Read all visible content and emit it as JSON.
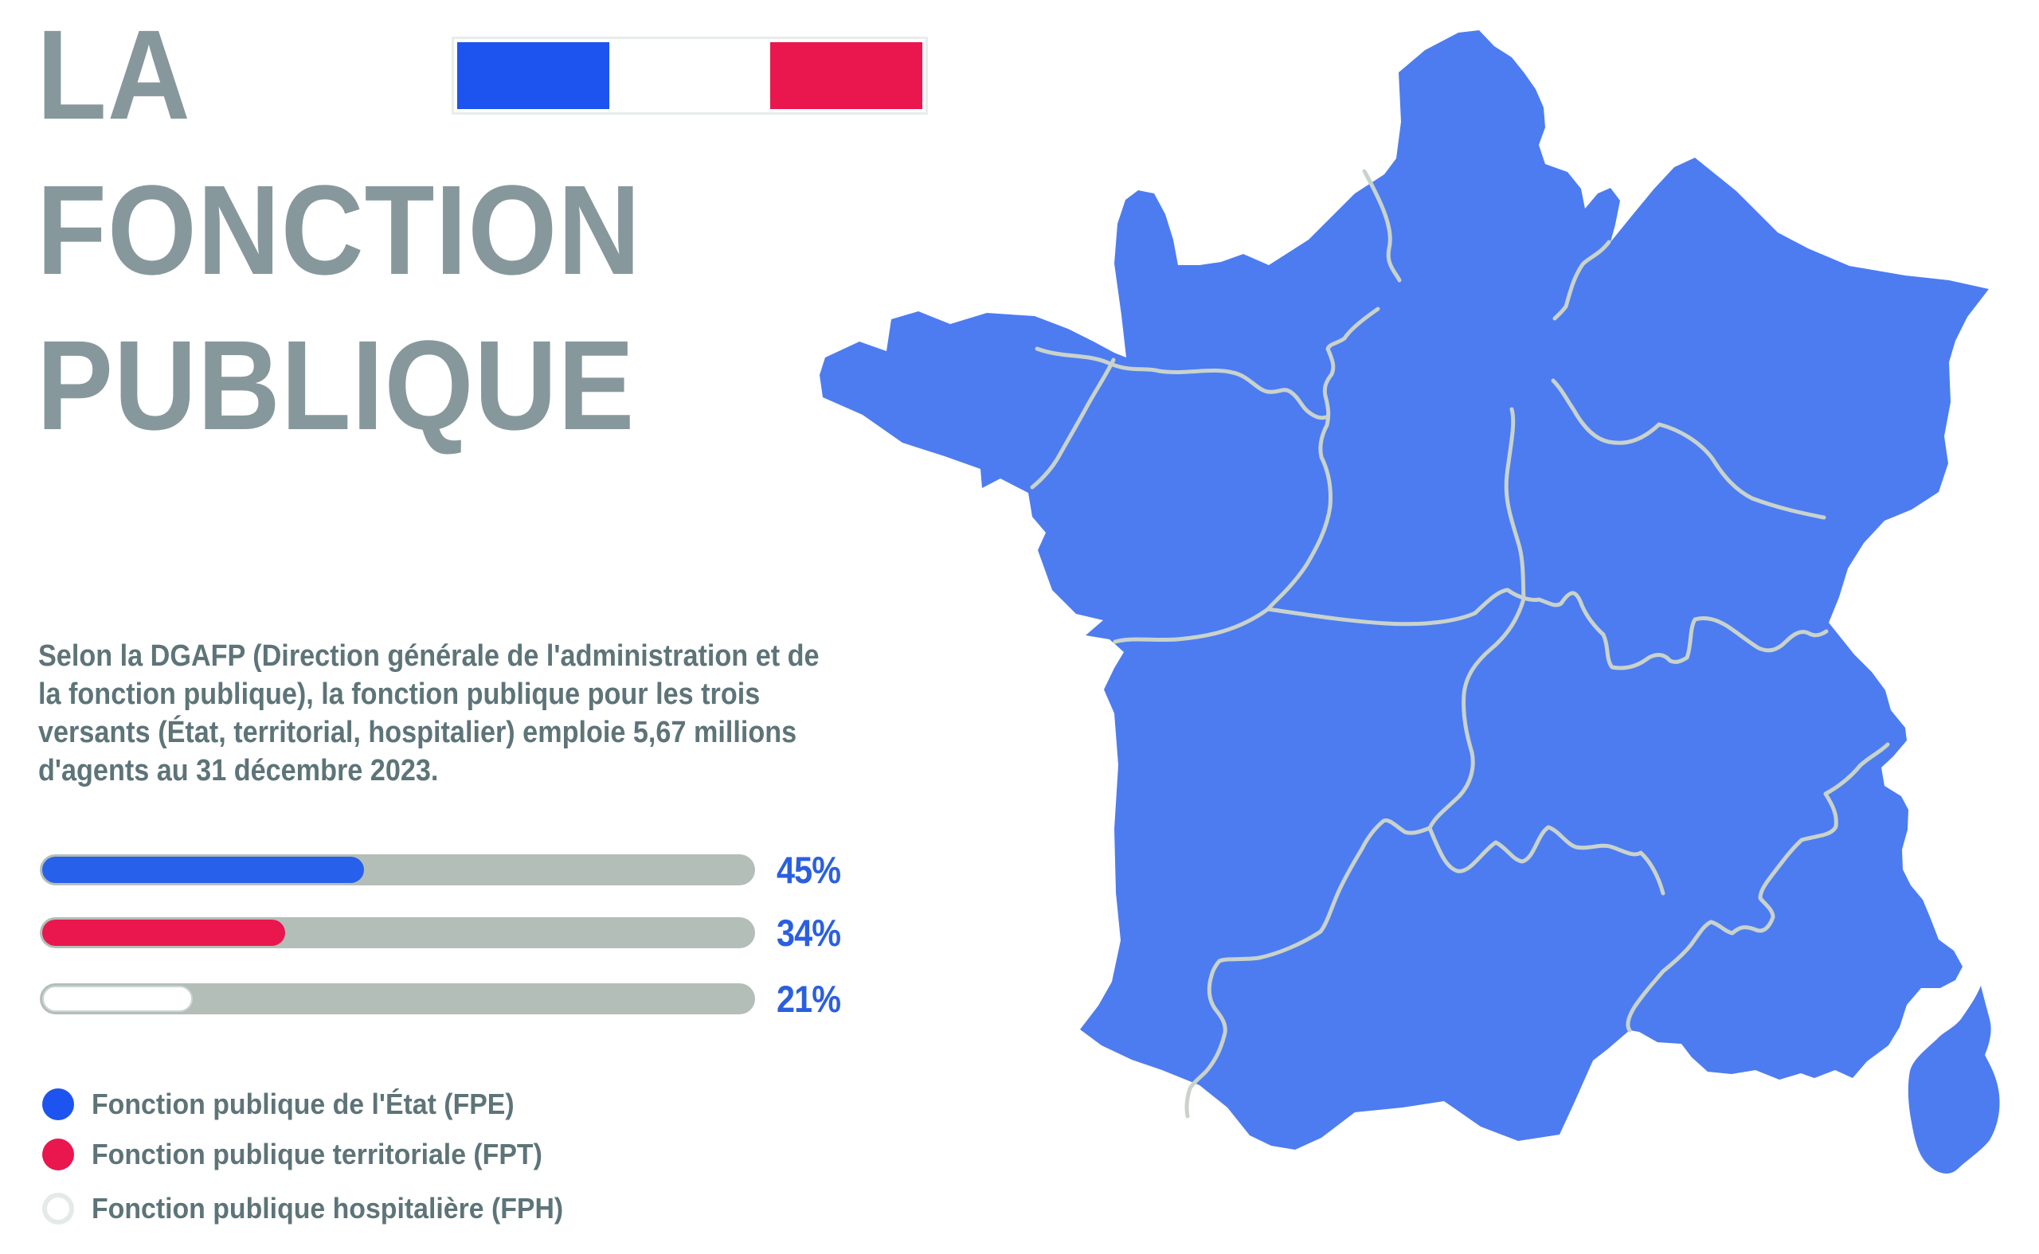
{
  "title": {
    "line1": "LA",
    "line2": "FONCTION",
    "line3": "PUBLIQUE",
    "color": "#87989d"
  },
  "flag": {
    "name": "drapeau français",
    "blue": "#1d54ef",
    "white": "#ffffff",
    "red": "#e9174e",
    "frame": "#e8edec"
  },
  "intro": {
    "color": "#5d7478",
    "text": "Selon la DGAFP (Direction générale de l'administration et de\nla fonction publique), la fonction publique pour les trois\nversants (État, territorial, hospitalier) emploie 5,67 millions\nd'agents au 31 décembre 2023."
  },
  "chart_data": {
    "type": "bar",
    "orientation": "horizontal",
    "categories": [
      "Fonction publique de l'État (FPE)",
      "Fonction publique territoriale (FPT)",
      "Fonction publique hospitalière (FPH)"
    ],
    "values": [
      45,
      34,
      21
    ],
    "unit": "%",
    "value_labels": [
      "45%",
      "34%",
      "21%"
    ],
    "xlim": [
      0,
      100
    ],
    "grid": false,
    "track_color": "#b4beb9",
    "label_color": "#2a5fe0",
    "legend_position": "bottom-left"
  },
  "bars": [
    {
      "label": "45%",
      "value": 45,
      "color": "#2760ea",
      "outlined": false
    },
    {
      "label": "34%",
      "value": 34,
      "color": "#e9174e",
      "outlined": false
    },
    {
      "label": "21%",
      "value": 21,
      "color": "#ffffff",
      "outlined": true
    }
  ],
  "track_color": "#b4beb9",
  "legend": [
    {
      "label": "Fonction publique de l'État (FPE)",
      "color": "#1d54ef",
      "hollow": false
    },
    {
      "label": "Fonction publique territoriale (FPT)",
      "color": "#e9174e",
      "hollow": false
    },
    {
      "label": "Fonction publique hospitalière (FPH)",
      "color": "#ffffff",
      "hollow": true
    }
  ],
  "legend_text_color": "#5d7478",
  "map": {
    "name": "carte des régions de France métropolitaine et Corse",
    "fill_color": "#4d7cf1",
    "border_color": "#c9d3cc"
  }
}
